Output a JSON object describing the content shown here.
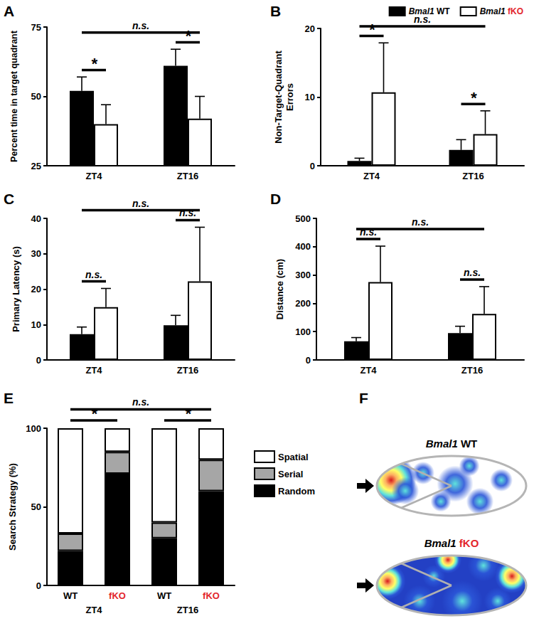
{
  "chart_data": [
    {
      "label": "A",
      "type": "bar",
      "y_label": "Percent time in target quadrant",
      "categories": [
        "ZT4",
        "ZT16"
      ],
      "series": [
        {
          "name": "Bmal1 WT",
          "color": "#000000",
          "values": [
            52,
            61
          ],
          "errors": [
            5,
            6
          ]
        },
        {
          "name": "Bmal1 fKO",
          "color": "#ffffff",
          "values": [
            40,
            42
          ],
          "errors": [
            7,
            8
          ]
        }
      ],
      "ylim": [
        25,
        75
      ],
      "yticks": [
        25,
        50,
        75
      ],
      "significance": {
        "within": [
          "*",
          "*"
        ],
        "across": "n.s."
      }
    },
    {
      "label": "B",
      "type": "bar",
      "y_label": "Non-Target-Quadrant\nErrors",
      "categories": [
        "ZT4",
        "ZT16"
      ],
      "series": [
        {
          "name": "Bmal1 WT",
          "color": "#000000",
          "values": [
            0.7,
            2.3
          ],
          "errors": [
            0.4,
            1.5
          ]
        },
        {
          "name": "Bmal1 fKO",
          "color": "#ffffff",
          "values": [
            10.7,
            4.6
          ],
          "errors": [
            7.2,
            3.4
          ]
        }
      ],
      "ylim": [
        0,
        20
      ],
      "yticks": [
        0,
        10,
        20
      ],
      "legend": "top-right",
      "significance": {
        "within": [
          "*",
          "*"
        ],
        "across": "n.s."
      }
    },
    {
      "label": "C",
      "type": "bar",
      "y_label": "Primary Latency (s)",
      "categories": [
        "ZT4",
        "ZT16"
      ],
      "series": [
        {
          "name": "Bmal1 WT",
          "color": "#000000",
          "values": [
            7.3,
            9.8
          ],
          "errors": [
            2,
            2.8
          ]
        },
        {
          "name": "Bmal1 fKO",
          "color": "#ffffff",
          "values": [
            14.9,
            22.2
          ],
          "errors": [
            5.3,
            15.3
          ]
        }
      ],
      "ylim": [
        0,
        40
      ],
      "yticks": [
        0,
        10,
        20,
        30,
        40
      ],
      "significance": {
        "within": [
          "n.s.",
          "n.s."
        ],
        "across": "n.s."
      }
    },
    {
      "label": "D",
      "type": "bar",
      "y_label": "Distance (cm)",
      "categories": [
        "ZT4",
        "ZT16"
      ],
      "series": [
        {
          "name": "Bmal1 WT",
          "color": "#000000",
          "values": [
            66,
            95
          ],
          "errors": [
            13,
            24
          ]
        },
        {
          "name": "Bmal1 fKO",
          "color": "#ffffff",
          "values": [
            275,
            163
          ],
          "errors": [
            127,
            96
          ]
        }
      ],
      "ylim": [
        0,
        500
      ],
      "yticks": [
        0,
        100,
        200,
        300,
        400,
        500
      ],
      "significance": {
        "within": [
          "n.s.",
          "n.s."
        ],
        "across": "n.s."
      }
    },
    {
      "label": "E",
      "type": "bar",
      "stacked": true,
      "y_label": "Search Strategy (%)",
      "categories": [
        "WT",
        "fKO",
        "WT",
        "fKO"
      ],
      "groups": [
        "ZT4",
        "ZT16"
      ],
      "series": [
        {
          "name": "Random",
          "color": "#000000",
          "values": [
            22,
            71,
            30,
            60
          ]
        },
        {
          "name": "Serial",
          "color": "#a6a6a6",
          "values": [
            11,
            14,
            10,
            20
          ]
        },
        {
          "name": "Spatial",
          "color": "#ffffff",
          "values": [
            67,
            15,
            60,
            20
          ]
        }
      ],
      "ylim": [
        0,
        100
      ],
      "yticks": [
        0,
        50,
        100
      ],
      "legend": "right",
      "significance": {
        "within": [
          "*",
          "*"
        ],
        "across": "n.s."
      }
    }
  ],
  "illustration": {
    "label": "F",
    "titles": [
      "Bmal1 WT",
      "Bmal1 fKO"
    ]
  }
}
